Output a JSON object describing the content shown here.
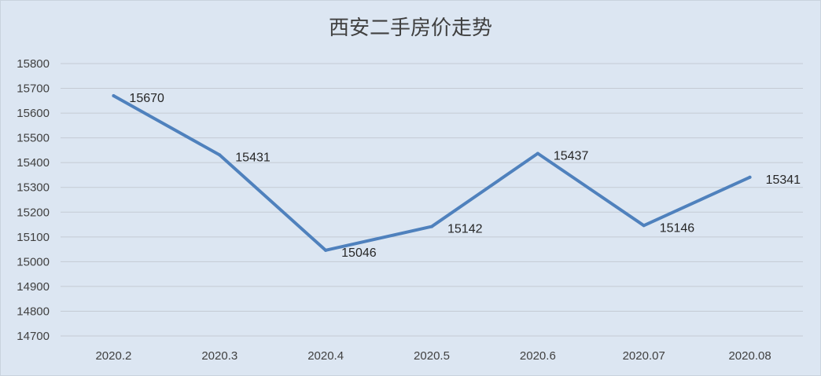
{
  "chart_data": {
    "type": "line",
    "title": "西安二手房价走势",
    "xlabel": "",
    "ylabel": "",
    "categories": [
      "2020.2",
      "2020.3",
      "2020.4",
      "2020.5",
      "2020.6",
      "2020.07",
      "2020.08"
    ],
    "series": [
      {
        "values": [
          15670,
          15431,
          15046,
          15142,
          15437,
          15146,
          15341
        ],
        "color": "#4f81bd"
      }
    ],
    "ylim": [
      14700,
      15800
    ],
    "ytick_step": 100,
    "grid": true,
    "legend": "none",
    "data_labels": true
  }
}
